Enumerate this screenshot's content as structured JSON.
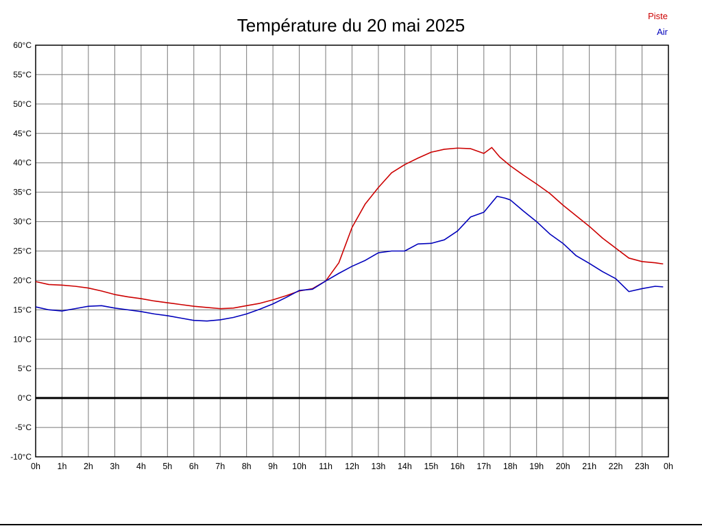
{
  "title": "Température du 20 mai 2025",
  "legend": {
    "piste_label": "Piste",
    "air_label": "Air"
  },
  "colors": {
    "piste": "#cc0000",
    "air": "#0000bb",
    "grid": "#777777",
    "border": "#000000",
    "zero_line": "#000000",
    "background": "#ffffff",
    "text": "#000000"
  },
  "chart_data": {
    "type": "line",
    "title": "Température du 20 mai 2025",
    "xlabel": "",
    "ylabel": "",
    "xlim": [
      0,
      24
    ],
    "ylim": [
      -10,
      60
    ],
    "y_tick_step": 5,
    "grid": true,
    "legend_position": "top-right",
    "x_tick_labels": [
      "0h",
      "1h",
      "2h",
      "3h",
      "4h",
      "5h",
      "6h",
      "7h",
      "8h",
      "9h",
      "10h",
      "11h",
      "12h",
      "13h",
      "14h",
      "15h",
      "16h",
      "17h",
      "18h",
      "19h",
      "20h",
      "21h",
      "22h",
      "23h",
      "0h"
    ],
    "y_tick_labels": [
      "60°C",
      "55°C",
      "50°C",
      "45°C",
      "40°C",
      "35°C",
      "30°C",
      "25°C",
      "20°C",
      "15°C",
      "10°C",
      "5°C",
      "0°C",
      "-5°C",
      "-10°C"
    ],
    "zero_line": {
      "value": 0,
      "width": 3
    },
    "series": [
      {
        "name": "Piste",
        "color": "#cc0000",
        "points": [
          [
            0,
            19.8
          ],
          [
            0.5,
            19.3
          ],
          [
            1,
            19.2
          ],
          [
            1.5,
            19.0
          ],
          [
            2,
            18.7
          ],
          [
            2.5,
            18.2
          ],
          [
            3,
            17.6
          ],
          [
            3.5,
            17.2
          ],
          [
            4,
            16.9
          ],
          [
            4.5,
            16.5
          ],
          [
            5,
            16.2
          ],
          [
            5.5,
            15.9
          ],
          [
            6,
            15.6
          ],
          [
            6.5,
            15.4
          ],
          [
            7,
            15.2
          ],
          [
            7.5,
            15.3
          ],
          [
            8,
            15.7
          ],
          [
            8.5,
            16.1
          ],
          [
            9,
            16.7
          ],
          [
            9.5,
            17.4
          ],
          [
            10,
            18.2
          ],
          [
            10.5,
            18.6
          ],
          [
            11,
            19.9
          ],
          [
            11.5,
            23.0
          ],
          [
            12,
            29.0
          ],
          [
            12.5,
            33.0
          ],
          [
            13,
            35.8
          ],
          [
            13.5,
            38.3
          ],
          [
            14,
            39.7
          ],
          [
            14.5,
            40.8
          ],
          [
            15,
            41.8
          ],
          [
            15.5,
            42.3
          ],
          [
            16,
            42.5
          ],
          [
            16.5,
            42.4
          ],
          [
            17,
            41.6
          ],
          [
            17.3,
            42.6
          ],
          [
            17.6,
            41.0
          ],
          [
            18,
            39.5
          ],
          [
            18.5,
            37.9
          ],
          [
            19,
            36.4
          ],
          [
            19.5,
            34.8
          ],
          [
            20,
            32.8
          ],
          [
            20.5,
            31.0
          ],
          [
            21,
            29.2
          ],
          [
            21.5,
            27.2
          ],
          [
            22,
            25.5
          ],
          [
            22.5,
            23.8
          ],
          [
            23,
            23.2
          ],
          [
            23.5,
            23.0
          ],
          [
            23.8,
            22.8
          ]
        ]
      },
      {
        "name": "Air",
        "color": "#0000bb",
        "points": [
          [
            0,
            15.5
          ],
          [
            0.5,
            15.0
          ],
          [
            1,
            14.8
          ],
          [
            1.5,
            15.2
          ],
          [
            2,
            15.6
          ],
          [
            2.5,
            15.7
          ],
          [
            3,
            15.3
          ],
          [
            3.5,
            15.0
          ],
          [
            4,
            14.7
          ],
          [
            4.5,
            14.3
          ],
          [
            5,
            14.0
          ],
          [
            5.5,
            13.6
          ],
          [
            6,
            13.2
          ],
          [
            6.5,
            13.1
          ],
          [
            7,
            13.3
          ],
          [
            7.5,
            13.7
          ],
          [
            8,
            14.3
          ],
          [
            8.5,
            15.1
          ],
          [
            9,
            16.0
          ],
          [
            9.5,
            17.1
          ],
          [
            10,
            18.3
          ],
          [
            10.5,
            18.5
          ],
          [
            11,
            19.9
          ],
          [
            11.5,
            21.2
          ],
          [
            12,
            22.4
          ],
          [
            12.5,
            23.4
          ],
          [
            13,
            24.7
          ],
          [
            13.5,
            25.0
          ],
          [
            14,
            25.0
          ],
          [
            14.5,
            26.2
          ],
          [
            15,
            26.3
          ],
          [
            15.5,
            26.9
          ],
          [
            16,
            28.4
          ],
          [
            16.5,
            30.8
          ],
          [
            17,
            31.6
          ],
          [
            17.5,
            34.3
          ],
          [
            17.8,
            34.0
          ],
          [
            18,
            33.7
          ],
          [
            18.5,
            31.8
          ],
          [
            19,
            30.0
          ],
          [
            19.5,
            27.9
          ],
          [
            20,
            26.3
          ],
          [
            20.5,
            24.2
          ],
          [
            21,
            22.9
          ],
          [
            21.5,
            21.5
          ],
          [
            22,
            20.3
          ],
          [
            22.5,
            18.1
          ],
          [
            23,
            18.6
          ],
          [
            23.5,
            19.0
          ],
          [
            23.8,
            18.9
          ]
        ]
      }
    ]
  }
}
